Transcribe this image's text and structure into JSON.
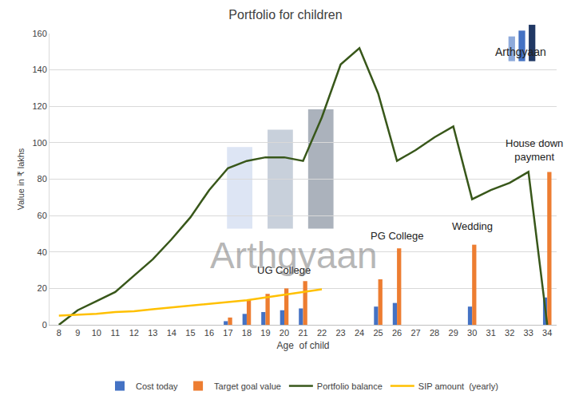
{
  "chart_data": {
    "type": "combo",
    "title": "Portfolio for children",
    "x_label": "Age  of child",
    "y_label": "Value in ₹ lakhs",
    "x": [
      8,
      9,
      10,
      11,
      12,
      13,
      14,
      15,
      16,
      17,
      18,
      19,
      20,
      21,
      22,
      23,
      24,
      25,
      26,
      27,
      28,
      29,
      30,
      31,
      32,
      33,
      34
    ],
    "xlim": [
      7.5,
      34.5
    ],
    "xticks": [
      8,
      9,
      10,
      11,
      12,
      13,
      14,
      15,
      16,
      17,
      18,
      19,
      20,
      21,
      22,
      23,
      24,
      25,
      26,
      27,
      28,
      29,
      30,
      31,
      32,
      33,
      34
    ],
    "ylim": [
      0,
      160
    ],
    "yticks": [
      0,
      20,
      40,
      60,
      80,
      100,
      120,
      140,
      160
    ],
    "grid": true,
    "legend": "bottom",
    "series": [
      {
        "name": "Cost today",
        "type": "bar",
        "color": "#4472c4",
        "values": [
          null,
          null,
          null,
          null,
          null,
          null,
          null,
          null,
          null,
          2,
          6,
          7,
          8,
          9,
          null,
          null,
          null,
          10,
          12,
          null,
          null,
          null,
          10,
          null,
          null,
          null,
          15
        ]
      },
      {
        "name": "Target goal value",
        "type": "bar",
        "color": "#ed7d31",
        "values": [
          null,
          null,
          null,
          null,
          null,
          null,
          null,
          null,
          null,
          4,
          14,
          17,
          20,
          24,
          null,
          null,
          null,
          25,
          42,
          null,
          null,
          null,
          44,
          null,
          null,
          null,
          84
        ]
      },
      {
        "name": "Portfolio balance",
        "type": "line",
        "color": "#38571a",
        "values": [
          0,
          8,
          13,
          18,
          27,
          36,
          47,
          59,
          74,
          86,
          90,
          92,
          92,
          90,
          114,
          143,
          152,
          127,
          90,
          96,
          103,
          109,
          69,
          74,
          78,
          84,
          0
        ]
      },
      {
        "name": "SIP amount  (yearly)",
        "type": "line",
        "color": "#ffc000",
        "values": [
          5,
          5.5,
          6,
          7,
          7.5,
          8.5,
          9.5,
          10.5,
          11.5,
          12.5,
          13.5,
          15,
          16.5,
          18,
          19.5,
          null,
          null,
          null,
          null,
          null,
          null,
          null,
          null,
          null,
          null,
          null,
          null
        ]
      }
    ],
    "annotations": [
      {
        "text": "UG College",
        "x": 20,
        "y": 30
      },
      {
        "text": "PG College",
        "x": 26,
        "y": 49
      },
      {
        "text": "Wedding",
        "x": 30,
        "y": 54
      },
      {
        "text": "House down\npayment",
        "x": 33.3,
        "y": 96
      },
      {
        "text": "Arthgyaan",
        "x": 20.5,
        "y": 38
      },
      {
        "text": "Arthgyaan",
        "x": 32.6,
        "y": 150
      }
    ]
  }
}
